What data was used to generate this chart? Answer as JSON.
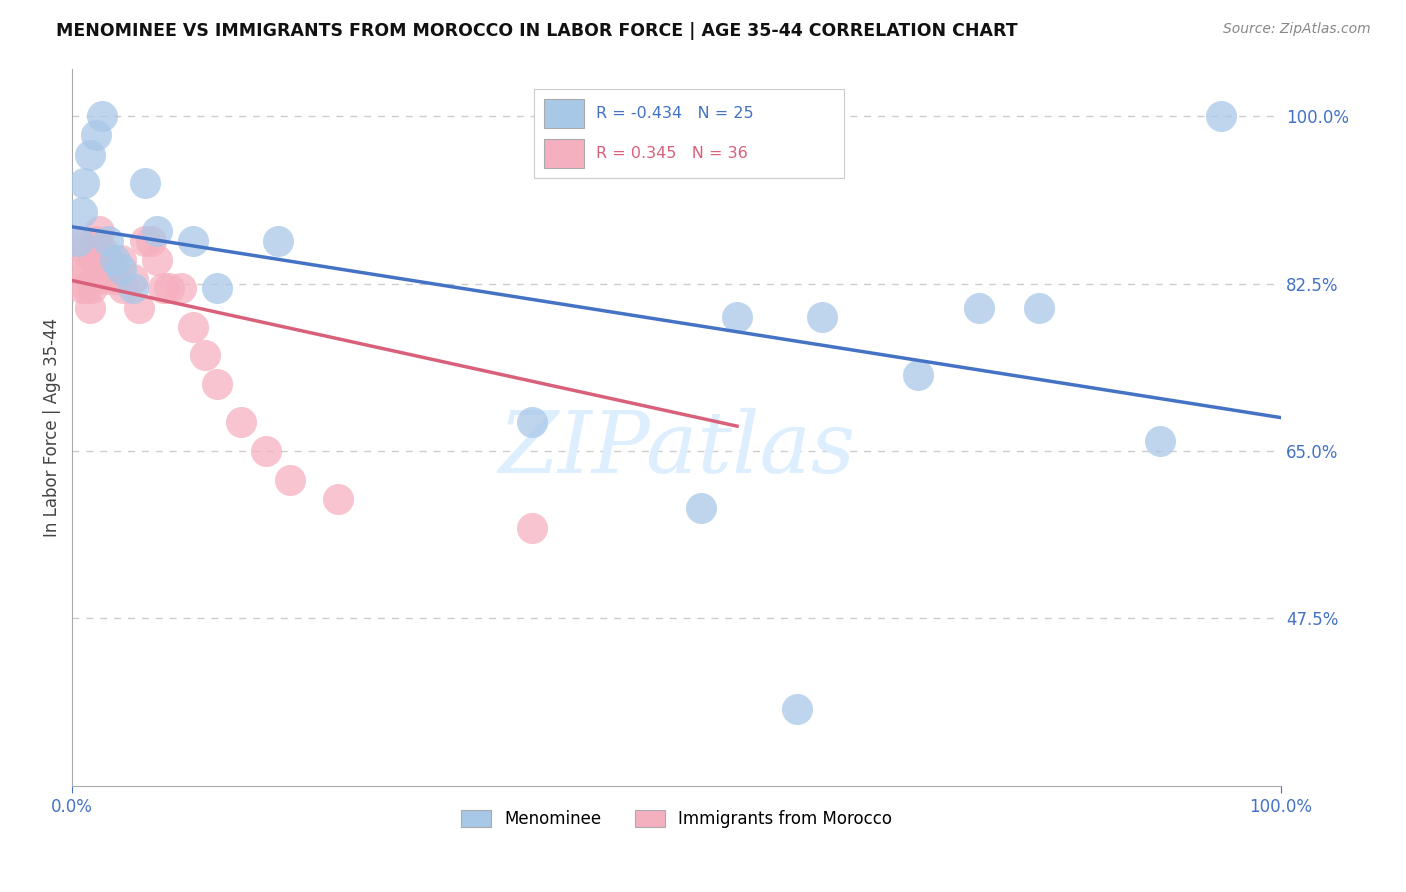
{
  "title": "MENOMINEE VS IMMIGRANTS FROM MOROCCO IN LABOR FORCE | AGE 35-44 CORRELATION CHART",
  "source": "Source: ZipAtlas.com",
  "ylabel": "In Labor Force | Age 35-44",
  "xlim": [
    0.0,
    1.0
  ],
  "ylim": [
    0.3,
    1.05
  ],
  "yticks": [
    0.475,
    0.65,
    0.825,
    1.0
  ],
  "ytick_labels": [
    "47.5%",
    "65.0%",
    "82.5%",
    "100.0%"
  ],
  "legend_labels": [
    "Menominee",
    "Immigrants from Morocco"
  ],
  "menominee_R": -0.434,
  "menominee_N": 25,
  "morocco_R": 0.345,
  "morocco_N": 36,
  "menominee_color": "#a8c8e8",
  "morocco_color": "#f5b0c0",
  "menominee_line_color": "#4472c4",
  "morocco_line_color": "#d9607a",
  "watermark_color": "#ddeeff",
  "menominee_x": [
    0.005,
    0.008,
    0.01,
    0.015,
    0.02,
    0.025,
    0.03,
    0.035,
    0.04,
    0.05,
    0.06,
    0.07,
    0.1,
    0.12,
    0.17,
    0.55,
    0.62,
    0.7,
    0.75,
    0.8,
    0.52,
    0.38,
    0.9,
    0.95,
    0.6
  ],
  "menominee_y": [
    0.87,
    0.9,
    0.93,
    0.96,
    0.98,
    1.0,
    0.87,
    0.85,
    0.84,
    0.82,
    0.93,
    0.88,
    0.87,
    0.82,
    0.87,
    0.79,
    0.79,
    0.73,
    0.8,
    0.8,
    0.59,
    0.68,
    0.66,
    1.0,
    0.38
  ],
  "morocco_x": [
    0.005,
    0.007,
    0.008,
    0.01,
    0.012,
    0.013,
    0.015,
    0.016,
    0.018,
    0.019,
    0.02,
    0.022,
    0.025,
    0.027,
    0.03,
    0.032,
    0.035,
    0.04,
    0.042,
    0.05,
    0.055,
    0.06,
    0.065,
    0.07,
    0.075,
    0.08,
    0.09,
    0.1,
    0.11,
    0.12,
    0.14,
    0.16,
    0.18,
    0.22,
    0.38,
    0.5
  ],
  "morocco_y": [
    0.87,
    0.84,
    0.82,
    0.86,
    0.82,
    0.84,
    0.8,
    0.82,
    0.85,
    0.83,
    0.87,
    0.88,
    0.86,
    0.83,
    0.85,
    0.84,
    0.83,
    0.85,
    0.82,
    0.83,
    0.8,
    0.87,
    0.87,
    0.85,
    0.82,
    0.82,
    0.82,
    0.78,
    0.75,
    0.72,
    0.68,
    0.65,
    0.62,
    0.6,
    0.57,
    1.0
  ]
}
